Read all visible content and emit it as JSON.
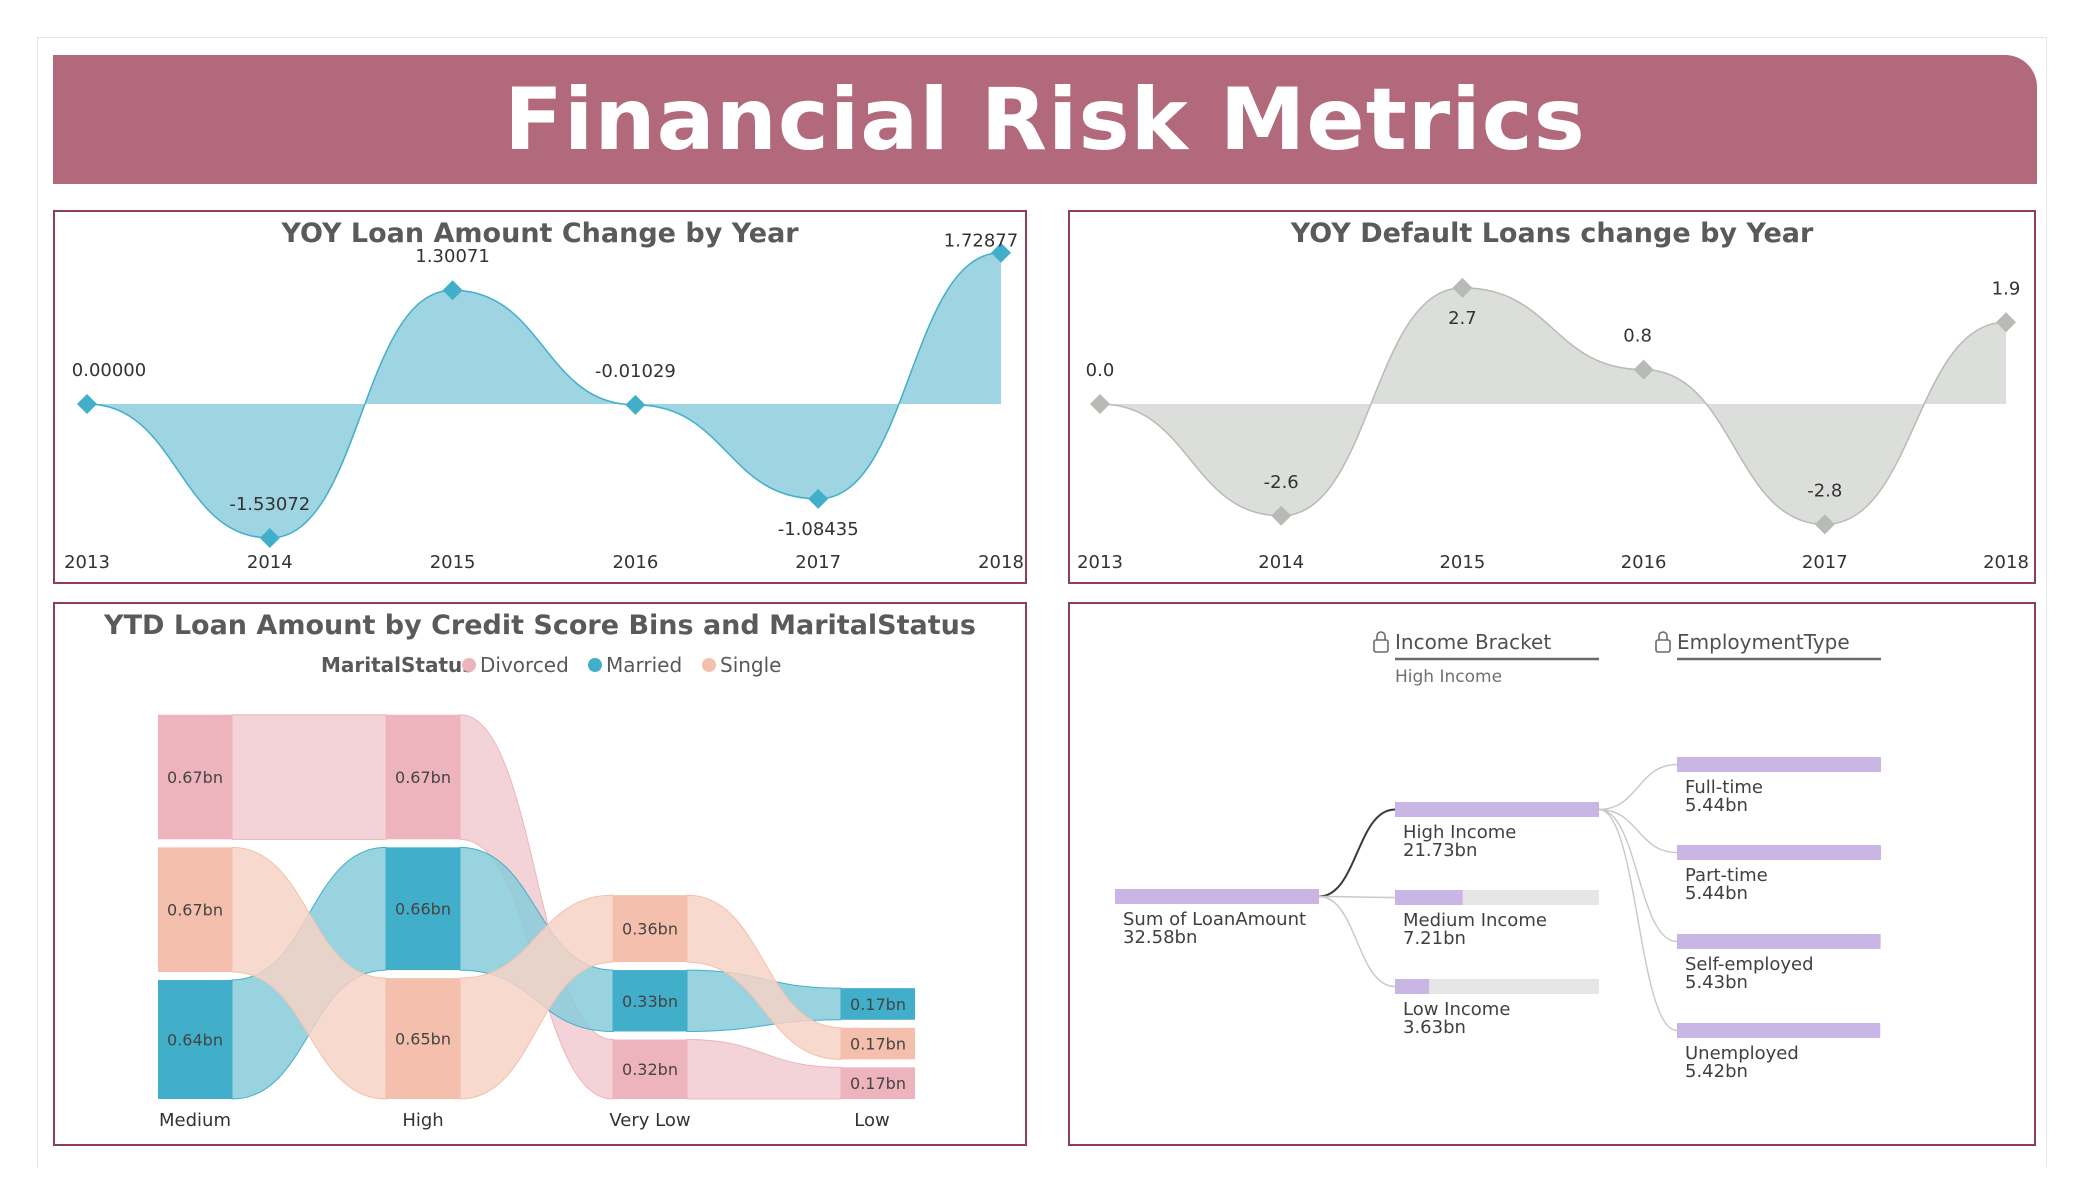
{
  "page_title": "Financial Risk Metrics",
  "chart_data": [
    {
      "type": "area",
      "title": "YOY Loan Amount Change by Year",
      "x": [
        "2013",
        "2014",
        "2015",
        "2016",
        "2017",
        "2018"
      ],
      "values": [
        0.0,
        -1.53072,
        1.30071,
        -0.01029,
        -1.08435,
        1.72877
      ],
      "labels": [
        "0.00000",
        "-1.53072",
        "1.30071",
        "-0.01029",
        "-1.08435",
        "1.72877"
      ],
      "color": "#41afc9",
      "fill_color": "#9fd4e2"
    },
    {
      "type": "area",
      "title": "YOY Default Loans change by Year",
      "x": [
        "2013",
        "2014",
        "2015",
        "2016",
        "2017",
        "2018"
      ],
      "values": [
        0.0,
        -2.6,
        2.7,
        0.8,
        -2.8,
        1.9
      ],
      "labels": [
        "0.0",
        "-2.6",
        "2.7",
        "0.8",
        "-2.8",
        "1.9"
      ],
      "color": "#b8bab5",
      "fill_color": "#dcdedb"
    },
    {
      "type": "ribbon",
      "title": "YTD Loan Amount by Credit Score Bins and MaritalStatus",
      "legend_title": "MaritalStatus",
      "legend_position": "top-center",
      "categories": [
        "Medium",
        "High",
        "Very Low",
        "Low"
      ],
      "series": [
        {
          "name": "Divorced",
          "color": "#eeb4bd",
          "fill_color": "#f2cbd1",
          "values": [
            0.67,
            0.67,
            0.32,
            0.17
          ],
          "labels": [
            "0.67bn",
            "0.67bn",
            "0.32bn",
            "0.17bn"
          ]
        },
        {
          "name": "Married",
          "color": "#41afc9",
          "fill_color": "#88cbdb",
          "values": [
            0.64,
            0.66,
            0.33,
            0.17
          ],
          "labels": [
            "0.64bn",
            "0.66bn",
            "0.33bn",
            "0.17bn"
          ]
        },
        {
          "name": "Single",
          "color": "#f4c0ad",
          "fill_color": "#f6d2c5",
          "values": [
            0.67,
            0.65,
            0.36,
            0.17
          ],
          "labels": [
            "0.67bn",
            "0.65bn",
            "0.36bn",
            "0.17bn"
          ]
        }
      ],
      "stack_order": [
        [
          "Divorced",
          "Single",
          "Married"
        ],
        [
          "Divorced",
          "Married",
          "Single"
        ],
        [
          "Single",
          "Married",
          "Divorced"
        ],
        [
          "Married",
          "Single",
          "Divorced"
        ]
      ]
    },
    {
      "type": "decomposition_tree",
      "levels": [
        {
          "name": "Income Bracket",
          "selected": "High Income"
        },
        {
          "name": "EmploymentType",
          "selected": ""
        }
      ],
      "root": {
        "label": "Sum of LoanAmount",
        "value": 32.58,
        "display": "32.58bn"
      },
      "level1": [
        {
          "label": "High Income",
          "value": 21.73,
          "display": "21.73bn",
          "expanded": true
        },
        {
          "label": "Medium Income",
          "value": 7.21,
          "display": "7.21bn",
          "expanded": false
        },
        {
          "label": "Low Income",
          "value": 3.63,
          "display": "3.63bn",
          "expanded": false
        }
      ],
      "level2": [
        {
          "label": "Full-time",
          "value": 5.44,
          "display": "5.44bn"
        },
        {
          "label": "Part-time",
          "value": 5.44,
          "display": "5.44bn"
        },
        {
          "label": "Self-employed",
          "value": 5.43,
          "display": "5.43bn"
        },
        {
          "label": "Unemployed",
          "value": 5.42,
          "display": "5.42bn"
        }
      ],
      "bar_color": "#c9b6e4",
      "track_color": "#e6e6e6"
    }
  ]
}
